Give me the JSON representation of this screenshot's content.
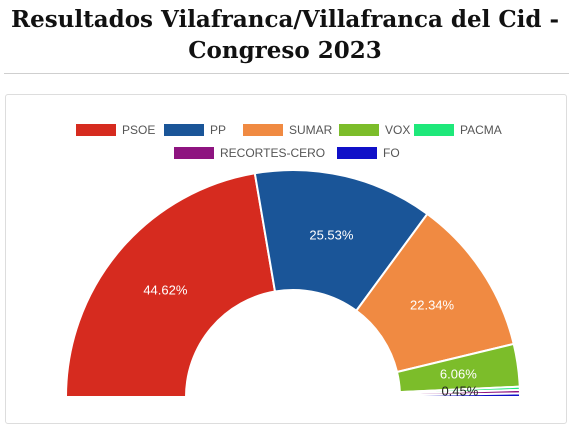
{
  "title": "Resultados Vilafranca/Villafranca del Cid - Congreso 2023",
  "chart_data": {
    "type": "pie",
    "style": "semi-donut",
    "legend_position": "top",
    "series": [
      {
        "name": "PSOE",
        "value": 44.62,
        "label": "44.62%",
        "color": "#d62b1f"
      },
      {
        "name": "PP",
        "value": 25.53,
        "label": "25.53%",
        "color": "#1a5598"
      },
      {
        "name": "SUMAR",
        "value": 22.34,
        "label": "22.34%",
        "color": "#f08a42"
      },
      {
        "name": "VOX",
        "value": 6.06,
        "label": "6.06%",
        "color": "#7cbd2a"
      },
      {
        "name": "PACMA",
        "value": 0.45,
        "label": "0.45%",
        "color": "#1ee87a"
      },
      {
        "name": "RECORTES-CERO",
        "value": 0.5,
        "label": "",
        "color": "#8e1480"
      },
      {
        "name": "FO",
        "value": 0.5,
        "label": "",
        "color": "#1010c8"
      }
    ]
  }
}
